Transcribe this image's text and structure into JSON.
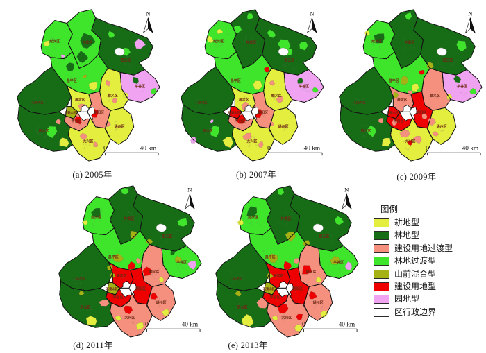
{
  "legend": {
    "title": "图例",
    "items": [
      {
        "key": "crop",
        "label": "耕地型",
        "color": "#E3EE3F"
      },
      {
        "key": "forest",
        "label": "林地型",
        "color": "#166D16"
      },
      {
        "key": "ctrans",
        "label": "建设用地过渡型",
        "color": "#F5907F"
      },
      {
        "key": "ftrans",
        "label": "林地过渡型",
        "color": "#3FE52B"
      },
      {
        "key": "mixed",
        "label": "山前混合型",
        "color": "#A6B213"
      },
      {
        "key": "constr",
        "label": "建设用地型",
        "color": "#EE0000"
      },
      {
        "key": "orchard",
        "label": "园地型",
        "color": "#EFA3F0"
      },
      {
        "key": "boundary",
        "label": "区行政边界",
        "color": "#FFFFFF"
      }
    ]
  },
  "map_common": {
    "north_label": "N",
    "scale_zero": "0",
    "scale_label": "40 km",
    "district_label_color": "#6E2815",
    "boundary_color": "#1b1b1b"
  },
  "districts": [
    {
      "key": "yanqing",
      "label": "延庆区"
    },
    {
      "key": "huairou",
      "label": "怀柔区"
    },
    {
      "key": "miyun",
      "label": "密云区"
    },
    {
      "key": "pinggu",
      "label": "平谷区"
    },
    {
      "key": "shunyi",
      "label": "顺义区"
    },
    {
      "key": "changping",
      "label": "昌平区"
    },
    {
      "key": "mentougou",
      "label": "门头沟区"
    },
    {
      "key": "haidian",
      "label": "海淀区"
    },
    {
      "key": "shijingshan",
      "label": "石景山区"
    },
    {
      "key": "chaoyang",
      "label": "朝阳区"
    },
    {
      "key": "fengtai",
      "label": "丰台区"
    },
    {
      "key": "tongzhou",
      "label": "通州区"
    },
    {
      "key": "daxing",
      "label": "大兴区"
    },
    {
      "key": "fangshan",
      "label": "房山区"
    }
  ],
  "maps": [
    {
      "id": "a",
      "year": "2005",
      "caption": "(a) 2005年",
      "fills": {
        "yanqing": "ftrans",
        "huairou": "ftrans",
        "miyun": "forest",
        "pinggu": "orchard",
        "shunyi": "crop",
        "changping": "ftrans",
        "mentougou": "forest",
        "haidian": "crop",
        "shijingshan": "mixed",
        "chaoyang": "ctrans",
        "fengtai": "ctrans",
        "tongzhou": "crop",
        "daxing": "crop",
        "fangshan": "forest"
      },
      "patches": [
        [
          118,
          55,
          12,
          "forest"
        ],
        [
          112,
          78,
          8,
          "forest"
        ],
        [
          196,
          58,
          8,
          "orchard"
        ],
        [
          176,
          70,
          7,
          "ftrans"
        ],
        [
          155,
          45,
          6,
          "ftrans"
        ],
        [
          190,
          112,
          5,
          "forest"
        ],
        [
          217,
          128,
          5,
          "ftrans"
        ],
        [
          176,
          134,
          4,
          "crop"
        ],
        [
          150,
          116,
          4,
          "ctrans"
        ],
        [
          160,
          142,
          4,
          "ctrans"
        ],
        [
          128,
          120,
          8,
          "crop"
        ],
        [
          95,
          92,
          6,
          "forest"
        ],
        [
          116,
          106,
          3,
          "mixed"
        ],
        [
          60,
          58,
          5,
          "crop"
        ],
        [
          84,
          76,
          3,
          "orchard"
        ],
        [
          112,
          150,
          5,
          "ctrans"
        ],
        [
          130,
          160,
          7,
          "constr"
        ],
        [
          106,
          170,
          6,
          "constr"
        ],
        [
          150,
          176,
          4,
          "ctrans"
        ],
        [
          114,
          194,
          5,
          "ctrans"
        ],
        [
          132,
          206,
          4,
          "ctrans"
        ],
        [
          66,
          186,
          9,
          "ftrans"
        ],
        [
          86,
          202,
          8,
          "crop"
        ],
        [
          78,
          172,
          4,
          "ctrans"
        ]
      ]
    },
    {
      "id": "b",
      "year": "2007",
      "caption": "(b) 2007年",
      "fills": {
        "yanqing": "ftrans",
        "huairou": "forest",
        "miyun": "forest",
        "pinggu": "orchard",
        "shunyi": "crop",
        "changping": "ftrans",
        "mentougou": "forest",
        "haidian": "crop",
        "shijingshan": "constr",
        "chaoyang": "ctrans",
        "fengtai": "ctrans",
        "tongzhou": "crop",
        "daxing": "crop",
        "fangshan": "forest"
      },
      "patches": [
        [
          100,
          36,
          7,
          "ftrans"
        ],
        [
          118,
          18,
          5,
          "ftrans"
        ],
        [
          168,
          60,
          9,
          "ftrans"
        ],
        [
          150,
          44,
          6,
          "ftrans"
        ],
        [
          143,
          96,
          4,
          "constr"
        ],
        [
          196,
          60,
          7,
          "ftrans"
        ],
        [
          176,
          70,
          5,
          "ftrans"
        ],
        [
          214,
          126,
          5,
          "ftrans"
        ],
        [
          192,
          112,
          5,
          "forest"
        ],
        [
          150,
          116,
          4,
          "ctrans"
        ],
        [
          162,
          140,
          5,
          "ctrans"
        ],
        [
          128,
          120,
          8,
          "crop"
        ],
        [
          60,
          52,
          5,
          "crop"
        ],
        [
          74,
          40,
          4,
          "crop"
        ],
        [
          112,
          150,
          6,
          "ctrans"
        ],
        [
          130,
          160,
          8,
          "constr"
        ],
        [
          106,
          170,
          7,
          "constr"
        ],
        [
          150,
          176,
          4,
          "ctrans"
        ],
        [
          114,
          194,
          6,
          "ctrans"
        ],
        [
          134,
          206,
          4,
          "ctrans"
        ],
        [
          66,
          186,
          8,
          "ftrans"
        ],
        [
          86,
          202,
          8,
          "crop"
        ],
        [
          35,
          200,
          5,
          "orchard"
        ],
        [
          62,
          172,
          3,
          "orchard"
        ]
      ]
    },
    {
      "id": "c",
      "year": "2009",
      "caption": "(c) 2009年",
      "fills": {
        "yanqing": "ftrans",
        "huairou": "forest",
        "miyun": "forest",
        "pinggu": "orchard",
        "shunyi": "ctrans",
        "changping": "ftrans",
        "mentougou": "forest",
        "haidian": "ctrans",
        "shijingshan": "constr",
        "chaoyang": "constr",
        "fengtai": "constr",
        "tongzhou": "crop",
        "daxing": "crop",
        "fangshan": "forest"
      },
      "patches": [
        [
          118,
          18,
          6,
          "ftrans"
        ],
        [
          76,
          50,
          8,
          "forest"
        ],
        [
          58,
          42,
          4,
          "crop"
        ],
        [
          196,
          62,
          8,
          "ftrans"
        ],
        [
          150,
          90,
          5,
          "mixed"
        ],
        [
          190,
          110,
          5,
          "forest"
        ],
        [
          214,
          128,
          5,
          "ftrans"
        ],
        [
          178,
          136,
          4,
          "crop"
        ],
        [
          138,
          100,
          4,
          "constr"
        ],
        [
          112,
          112,
          6,
          "mixed"
        ],
        [
          128,
          122,
          7,
          "crop"
        ],
        [
          120,
          130,
          4,
          "ctrans"
        ],
        [
          100,
          134,
          5,
          "mixed"
        ],
        [
          142,
          164,
          5,
          "ctrans"
        ],
        [
          98,
          174,
          5,
          "ctrans"
        ],
        [
          152,
          172,
          6,
          "ctrans"
        ],
        [
          158,
          190,
          4,
          "ctrans"
        ],
        [
          114,
          190,
          7,
          "ctrans"
        ],
        [
          132,
          198,
          6,
          "ctrans"
        ],
        [
          121,
          203,
          4,
          "constr"
        ],
        [
          64,
          186,
          8,
          "ftrans"
        ],
        [
          86,
          202,
          8,
          "crop"
        ],
        [
          78,
          170,
          4,
          "ctrans"
        ]
      ]
    },
    {
      "id": "d",
      "year": "2011",
      "caption": "(d) 2011年",
      "fills": {
        "yanqing": "ftrans",
        "huairou": "forest",
        "miyun": "forest",
        "pinggu": "ftrans",
        "shunyi": "ctrans",
        "changping": "ftrans",
        "mentougou": "forest",
        "haidian": "constr",
        "shijingshan": "mixed",
        "chaoyang": "constr",
        "fengtai": "constr",
        "tongzhou": "ctrans",
        "daxing": "ctrans",
        "fangshan": "forest"
      },
      "patches": [
        [
          72,
          48,
          8,
          "forest"
        ],
        [
          56,
          62,
          4,
          "crop"
        ],
        [
          114,
          16,
          5,
          "ftrans"
        ],
        [
          126,
          80,
          6,
          "mixed"
        ],
        [
          198,
          62,
          7,
          "ftrans"
        ],
        [
          150,
          90,
          5,
          "mixed"
        ],
        [
          212,
          124,
          7,
          "orchard"
        ],
        [
          192,
          116,
          5,
          "mixed"
        ],
        [
          184,
          106,
          4,
          "forest"
        ],
        [
          148,
          134,
          7,
          "constr"
        ],
        [
          168,
          146,
          4,
          "crop"
        ],
        [
          104,
          114,
          8,
          "mixed"
        ],
        [
          124,
          126,
          6,
          "constr"
        ],
        [
          134,
          118,
          4,
          "ctrans"
        ],
        [
          96,
          140,
          4,
          "mixed"
        ],
        [
          156,
          170,
          5,
          "constr"
        ],
        [
          174,
          194,
          5,
          "crop"
        ],
        [
          118,
          190,
          7,
          "constr"
        ],
        [
          136,
          214,
          6,
          "crop"
        ],
        [
          104,
          202,
          4,
          "crop"
        ],
        [
          84,
          180,
          7,
          "ctrans"
        ],
        [
          66,
          206,
          8,
          "crop"
        ],
        [
          50,
          166,
          4,
          "mixed"
        ],
        [
          92,
          128,
          4,
          "mixed"
        ]
      ]
    },
    {
      "id": "e",
      "year": "2013",
      "caption": "(e) 2013年",
      "fills": {
        "yanqing": "ftrans",
        "huairou": "forest",
        "miyun": "forest",
        "pinggu": "ftrans",
        "shunyi": "ctrans",
        "changping": "ftrans",
        "mentougou": "forest",
        "haidian": "constr",
        "shijingshan": "mixed",
        "chaoyang": "constr",
        "fengtai": "constr",
        "tongzhou": "ctrans",
        "daxing": "ctrans",
        "fangshan": "forest"
      },
      "patches": [
        [
          70,
          46,
          8,
          "forest"
        ],
        [
          54,
          62,
          5,
          "crop"
        ],
        [
          112,
          16,
          5,
          "ftrans"
        ],
        [
          126,
          82,
          7,
          "mixed"
        ],
        [
          198,
          60,
          7,
          "ftrans"
        ],
        [
          150,
          92,
          5,
          "mixed"
        ],
        [
          212,
          126,
          6,
          "orchard"
        ],
        [
          192,
          118,
          6,
          "mixed"
        ],
        [
          150,
          132,
          8,
          "constr"
        ],
        [
          168,
          146,
          4,
          "crop"
        ],
        [
          102,
          114,
          8,
          "mixed"
        ],
        [
          122,
          126,
          7,
          "constr"
        ],
        [
          136,
          118,
          4,
          "ctrans"
        ],
        [
          96,
          140,
          5,
          "mixed"
        ],
        [
          158,
          170,
          6,
          "constr"
        ],
        [
          176,
          196,
          5,
          "crop"
        ],
        [
          116,
          188,
          8,
          "constr"
        ],
        [
          138,
          216,
          6,
          "crop"
        ],
        [
          104,
          202,
          4,
          "crop"
        ],
        [
          86,
          180,
          8,
          "ctrans"
        ],
        [
          64,
          206,
          8,
          "crop"
        ],
        [
          50,
          166,
          4,
          "mixed"
        ],
        [
          140,
          200,
          5,
          "constr"
        ]
      ]
    }
  ]
}
